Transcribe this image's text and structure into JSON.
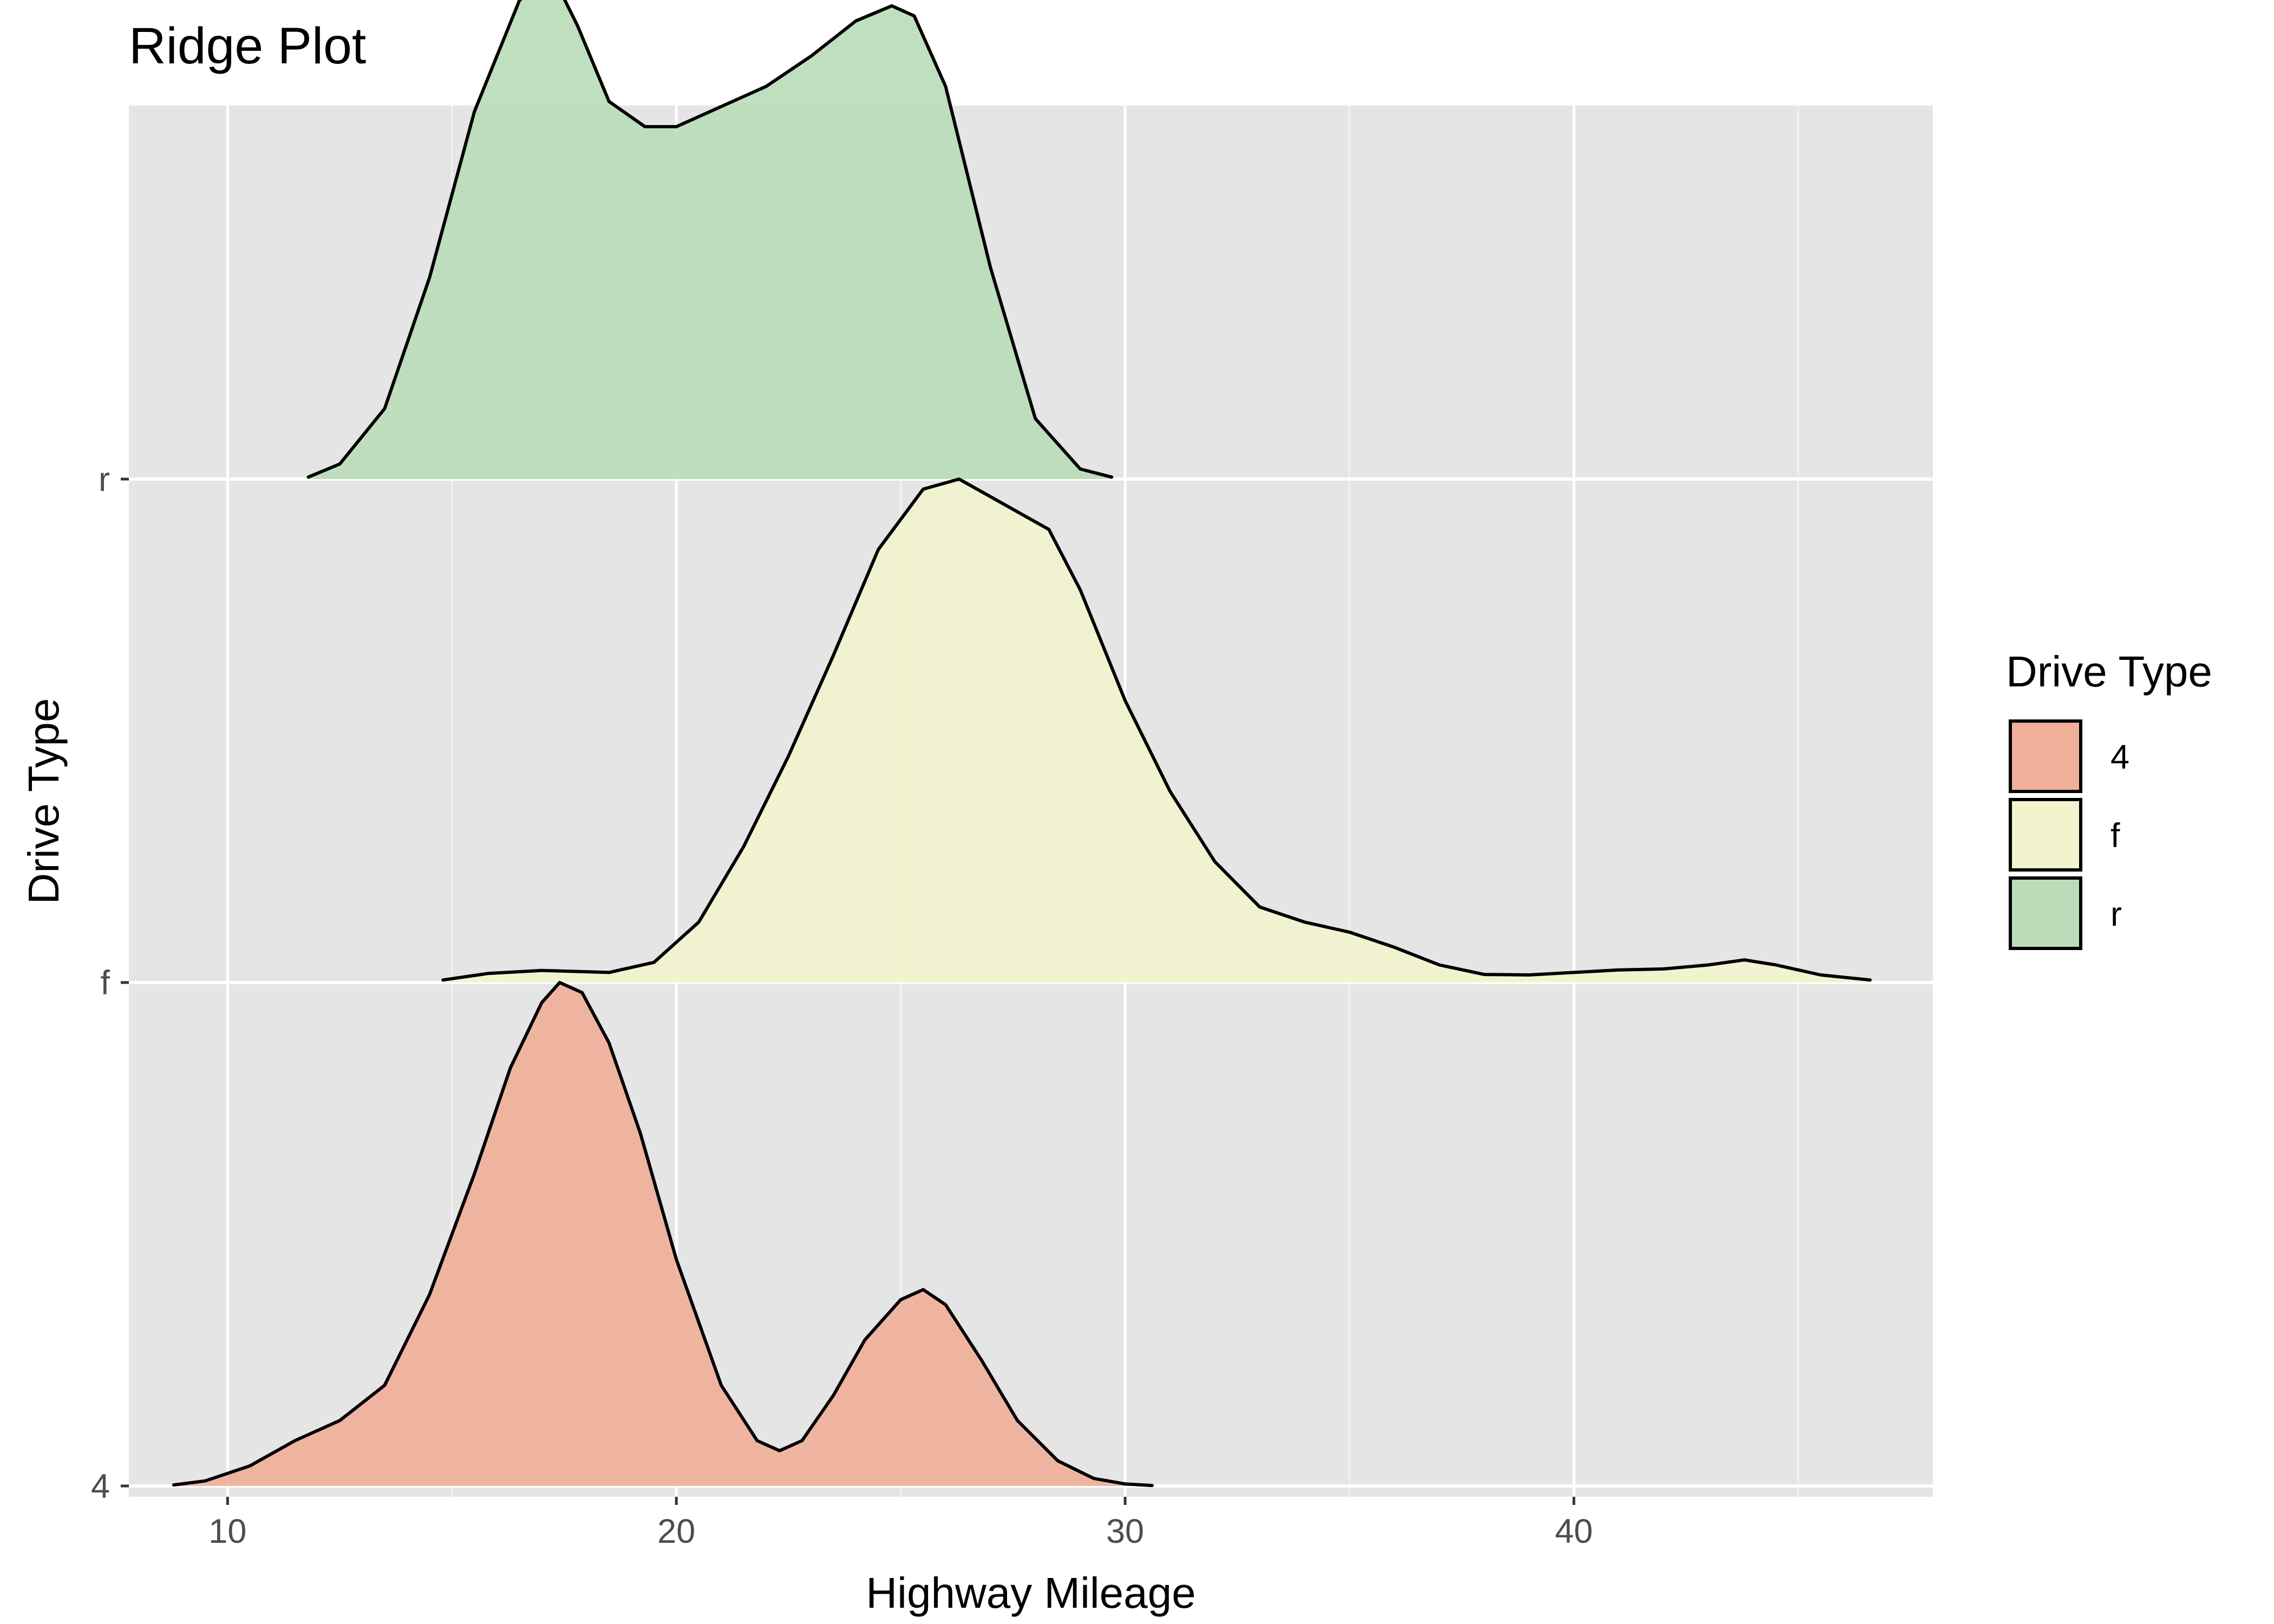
{
  "chart_data": {
    "type": "ridgeline",
    "title": "Ridge Plot",
    "xlabel": "Highway Mileage",
    "ylabel": "Drive Type",
    "xlim": [
      7.8,
      48
    ],
    "x_ticks": [
      10,
      20,
      30,
      40
    ],
    "categories": [
      "4",
      "f",
      "r"
    ],
    "grid": true,
    "background": "#e5e5e5",
    "legend": {
      "title": "Drive Type",
      "position": "right"
    },
    "series": [
      {
        "name": "4",
        "color": "#f0b09a",
        "x": [
          8.8,
          9.5,
          10.5,
          11.5,
          12.5,
          13.5,
          14.5,
          15.5,
          16.3,
          17.0,
          17.4,
          17.9,
          18.5,
          19.2,
          20.0,
          21.0,
          21.8,
          22.3,
          22.8,
          23.5,
          24.2,
          25.0,
          25.5,
          26.0,
          26.8,
          27.6,
          28.5,
          29.3,
          30.0,
          30.6
        ],
        "density": [
          0.002,
          0.01,
          0.04,
          0.09,
          0.13,
          0.2,
          0.38,
          0.62,
          0.83,
          0.96,
          1.0,
          0.98,
          0.88,
          0.7,
          0.45,
          0.2,
          0.09,
          0.07,
          0.09,
          0.18,
          0.29,
          0.37,
          0.39,
          0.36,
          0.25,
          0.13,
          0.05,
          0.015,
          0.004,
          0.001
        ]
      },
      {
        "name": "f",
        "color": "#f2f4ce",
        "x": [
          14.8,
          15.8,
          17.0,
          18.5,
          19.5,
          20.5,
          21.5,
          22.5,
          23.5,
          24.5,
          25.5,
          26.3,
          26.9,
          27.5,
          28.3,
          29.0,
          30.0,
          31.0,
          32.0,
          33.0,
          34.0,
          35.0,
          36.0,
          37.0,
          38.0,
          39.0,
          40.0,
          41.0,
          42.0,
          43.0,
          43.8,
          44.5,
          45.5,
          46.6
        ],
        "density": [
          0.005,
          0.018,
          0.024,
          0.02,
          0.04,
          0.12,
          0.27,
          0.45,
          0.65,
          0.86,
          0.98,
          1.0,
          0.97,
          0.94,
          0.9,
          0.78,
          0.56,
          0.38,
          0.24,
          0.15,
          0.12,
          0.1,
          0.07,
          0.035,
          0.016,
          0.015,
          0.02,
          0.025,
          0.027,
          0.035,
          0.045,
          0.035,
          0.015,
          0.005
        ]
      },
      {
        "name": "r",
        "color": "#bbdcb8",
        "x": [
          11.8,
          12.5,
          13.5,
          14.5,
          15.5,
          16.5,
          17.0,
          17.3,
          17.8,
          18.5,
          19.3,
          20.0,
          21.0,
          22.0,
          23.0,
          24.0,
          24.8,
          25.3,
          26.0,
          27.0,
          28.0,
          29.0,
          29.7
        ],
        "density": [
          0.004,
          0.03,
          0.14,
          0.4,
          0.73,
          0.95,
          1.0,
          0.99,
          0.9,
          0.75,
          0.7,
          0.7,
          0.74,
          0.78,
          0.84,
          0.91,
          0.94,
          0.92,
          0.78,
          0.42,
          0.12,
          0.02,
          0.004
        ]
      }
    ]
  }
}
